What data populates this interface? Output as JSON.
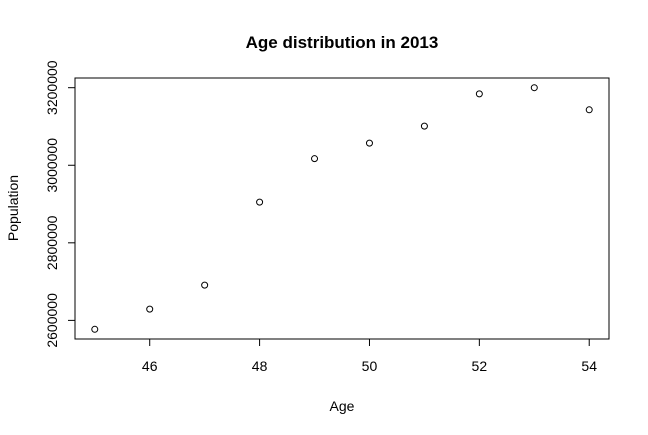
{
  "chart_data": {
    "type": "scatter",
    "title": "Age distribution in 2013",
    "x_label": "Age",
    "y_label": "Population",
    "x": [
      45,
      46,
      47,
      48,
      49,
      50,
      51,
      52,
      53,
      54
    ],
    "values": [
      2577000,
      2629000,
      2691000,
      2905000,
      3017000,
      3057000,
      3101000,
      3184000,
      3200000,
      3143000
    ],
    "color": "#000000",
    "xlim": [
      44.64,
      54.36
    ],
    "xticks": [
      46,
      48,
      50,
      52,
      54
    ],
    "ylim": [
      2552000,
      3225000
    ],
    "yticks": [
      2600000,
      2800000,
      3000000,
      3200000
    ]
  }
}
